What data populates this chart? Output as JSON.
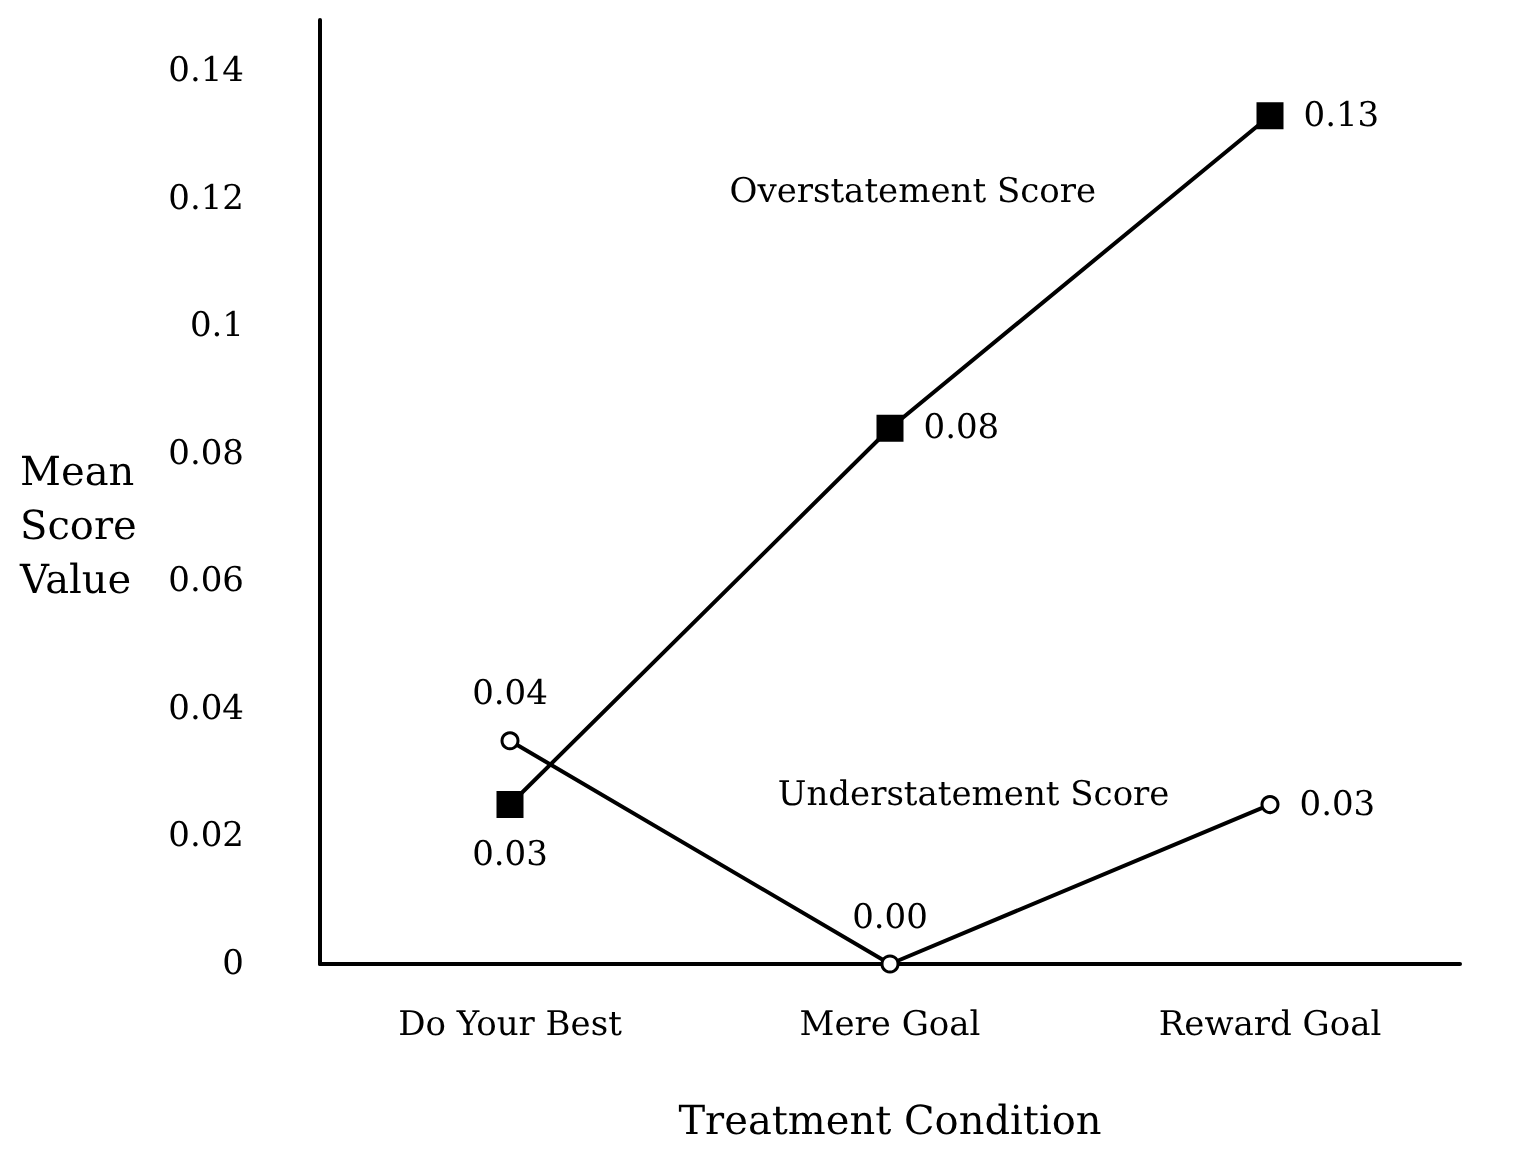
{
  "chart_data": {
    "type": "line",
    "xlabel": "Treatment Condition",
    "ylabel": "Mean\nScore\nValue",
    "categories": [
      "Do Your Best",
      "Mere Goal",
      "Reward Goal"
    ],
    "series": [
      {
        "name": "Overstatement Score",
        "color": "#000000",
        "marker": "square",
        "values": [
          0.025,
          0.084,
          0.133
        ],
        "value_labels": [
          "0.03",
          "0.08",
          "0.13"
        ]
      },
      {
        "name": "Understatement Score",
        "color": "#000000",
        "marker": "circle",
        "values": [
          0.035,
          0.0,
          0.025
        ],
        "value_labels": [
          "0.04",
          "0.00",
          "0.03"
        ]
      }
    ],
    "ylim": [
      0,
      0.148
    ],
    "yticks": [
      0,
      0.02,
      0.04,
      0.06,
      0.08,
      0.1,
      0.12,
      0.14
    ],
    "grid": false,
    "legend": false
  }
}
